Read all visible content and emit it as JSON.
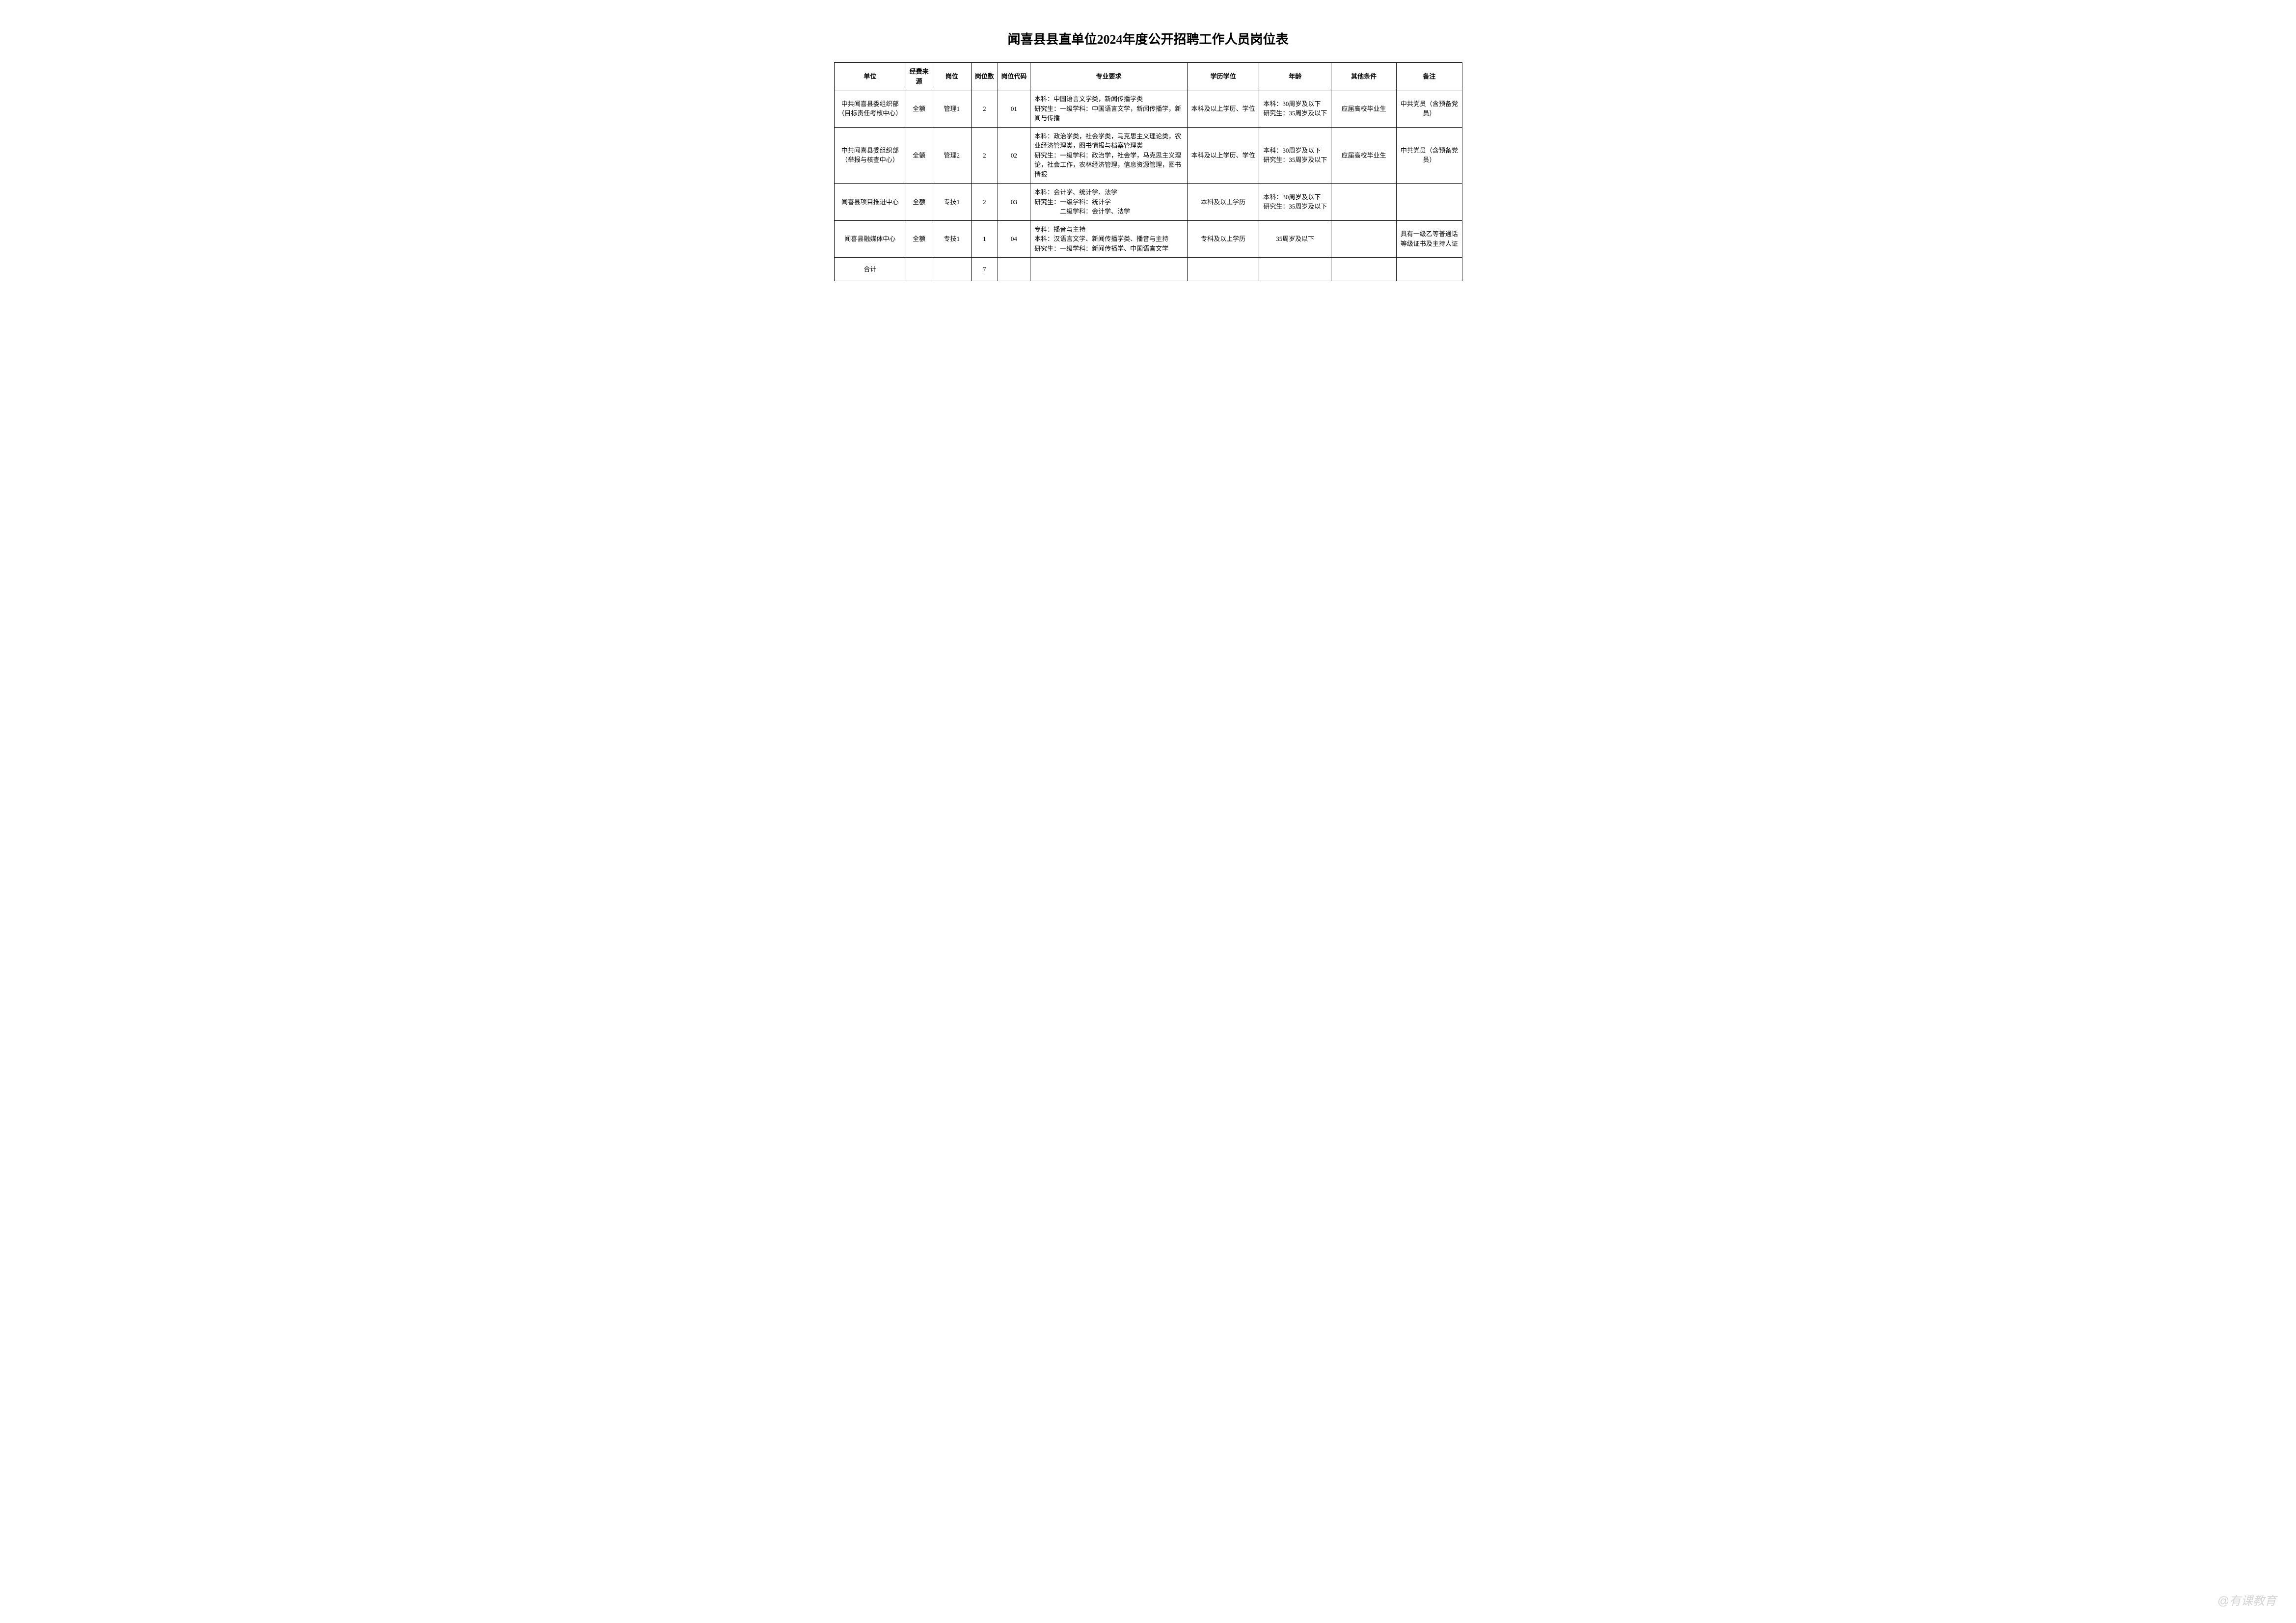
{
  "title": "闻喜县县直单位2024年度公开招聘工作人员岗位表",
  "columns": {
    "unit": "单位",
    "funding": "经费来源",
    "position": "岗位",
    "count": "岗位数",
    "code": "岗位代码",
    "major": "专业要求",
    "edu": "学历学位",
    "age": "年龄",
    "other": "其他条件",
    "remark": "备注"
  },
  "rows": [
    {
      "unit": "中共闻喜县委组织部（目标责任考核中心）",
      "funding": "全额",
      "position": "管理1",
      "count": "2",
      "code": "01",
      "major": "本科：中国语言文学类，新闻传播学类\n研究生：一级学科：中国语言文学，新闻传播学，新闻与传播",
      "edu": "本科及以上学历、学位",
      "age": "本科：30周岁及以下\n研究生：35周岁及以下",
      "other": "应届高校毕业生",
      "remark": "中共党员（含预备党员）"
    },
    {
      "unit": "中共闻喜县委组织部（举报与核查中心）",
      "funding": "全额",
      "position": "管理2",
      "count": "2",
      "code": "02",
      "major": "本科：政治学类，社会学类，马克思主义理论类，农业经济管理类，图书情报与档案管理类\n研究生：一级学科：政治学，社会学，马克思主义理论，社会工作，农林经济管理，信息资源管理，图书情报",
      "edu": "本科及以上学历、学位",
      "age": "本科：30周岁及以下\n研究生：35周岁及以下",
      "other": "应届高校毕业生",
      "remark": "中共党员（含预备党员）"
    },
    {
      "unit": "闻喜县项目推进中心",
      "funding": "全额",
      "position": "专技1",
      "count": "2",
      "code": "03",
      "major": "本科：会计学、统计学、法学\n研究生：一级学科：统计学\n　　　　二级学科：会计学、法学",
      "edu": "本科及以上学历",
      "age": "本科：30周岁及以下\n研究生：35周岁及以下",
      "other": "",
      "remark": ""
    },
    {
      "unit": "闻喜县融媒体中心",
      "funding": "全额",
      "position": "专技1",
      "count": "1",
      "code": "04",
      "major": "专科：播音与主持\n本科：汉语言文学、新闻传播学类、播音与主持\n研究生：一级学科：新闻传播学、中国语言文学",
      "edu": "专科及以上学历",
      "age": "35周岁及以下",
      "other": "",
      "remark": "具有一级乙等普通话等级证书及主持人证"
    }
  ],
  "total": {
    "label": "合计",
    "count": "7"
  },
  "watermark": "@有课教育",
  "style": {
    "background_color": "#ffffff",
    "border_color": "#000000",
    "text_color": "#000000",
    "title_fontsize": 26,
    "cell_fontsize": 13,
    "watermark_color": "rgba(160,160,160,0.45)"
  }
}
